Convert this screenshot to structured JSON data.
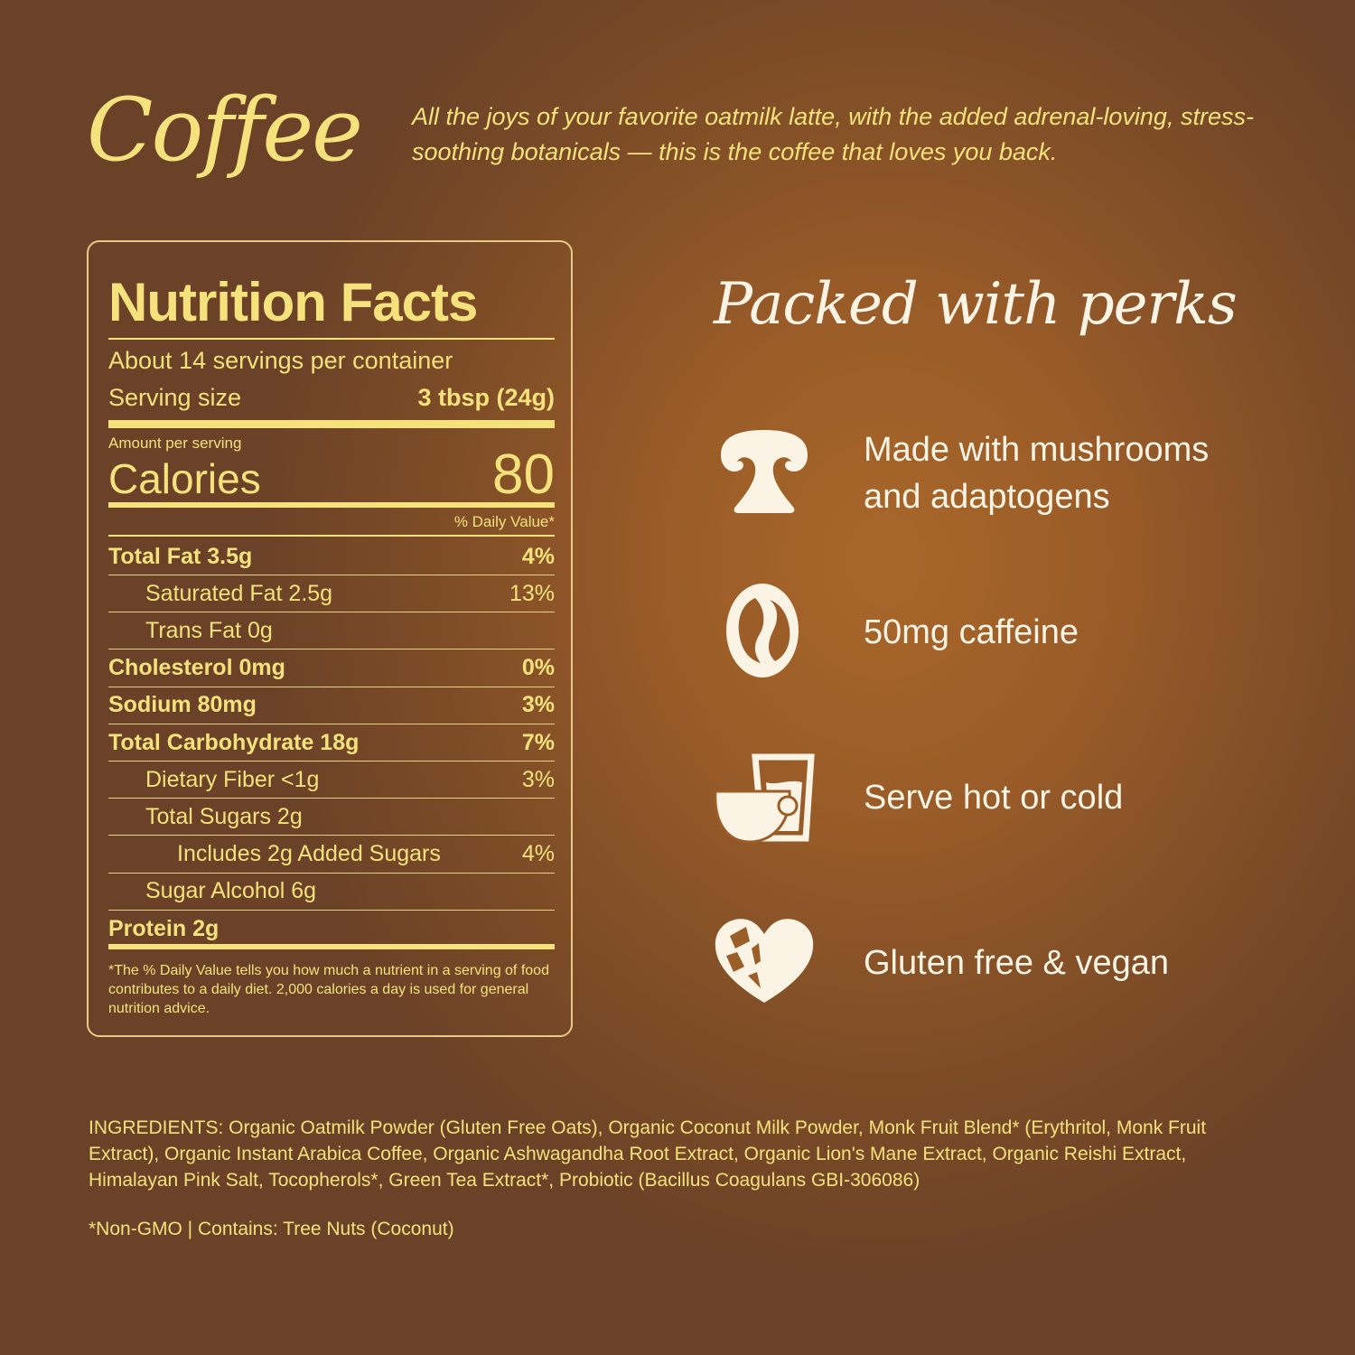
{
  "header": {
    "title": "Coffee",
    "tagline": "All the joys of your favorite oatmilk latte, with the added adrenal-loving, stress-soothing botanicals — this is the coffee that loves you back."
  },
  "nutrition": {
    "title": "Nutrition Facts",
    "servings": "About 14 servings per container",
    "serving_size_label": "Serving size",
    "serving_size_value": "3 tbsp (24g)",
    "amount_per_serving": "Amount per serving",
    "calories_label": "Calories",
    "calories_value": "80",
    "daily_value_header": "% Daily Value*",
    "rows": [
      {
        "label": "Total Fat 3.5g",
        "dv": "4%",
        "bold": true,
        "indent": 0
      },
      {
        "label": "Saturated Fat 2.5g",
        "dv": "13%",
        "bold": false,
        "indent": 1
      },
      {
        "label": "Trans Fat 0g",
        "dv": "",
        "bold": false,
        "indent": 1
      },
      {
        "label": "Cholesterol 0mg",
        "dv": "0%",
        "bold": true,
        "indent": 0
      },
      {
        "label": "Sodium 80mg",
        "dv": "3%",
        "bold": true,
        "indent": 0
      },
      {
        "label": "Total Carbohydrate 18g",
        "dv": "7%",
        "bold": true,
        "indent": 0
      },
      {
        "label": "Dietary Fiber <1g",
        "dv": "3%",
        "bold": false,
        "indent": 1
      },
      {
        "label": "Total Sugars 2g",
        "dv": "",
        "bold": false,
        "indent": 1
      },
      {
        "label": "Includes 2g Added Sugars",
        "dv": "4%",
        "bold": false,
        "indent": 2
      },
      {
        "label": "Sugar Alcohol 6g",
        "dv": "",
        "bold": false,
        "indent": 1
      },
      {
        "label": "Protein 2g",
        "dv": "",
        "bold": true,
        "indent": 0
      }
    ],
    "footnote": "*The % Daily Value tells you how much a nutrient in a serving of food contributes to a daily diet. 2,000 calories a day is used for general nutrition advice."
  },
  "perks": {
    "title": "Packed with perks",
    "items": [
      {
        "icon": "mushroom-icon",
        "label": "Made with mushrooms and adaptogens"
      },
      {
        "icon": "coffee-bean-icon",
        "label": "50mg caffeine"
      },
      {
        "icon": "cup-and-glass-icon",
        "label": "Serve hot or cold"
      },
      {
        "icon": "leaf-heart-icon",
        "label": "Gluten free & vegan"
      }
    ]
  },
  "ingredients": "INGREDIENTS: Organic Oatmilk Powder (Gluten Free Oats), Organic Coconut Milk Powder, Monk Fruit Blend* (Erythritol, Monk Fruit Extract), Organic Instant Arabica Coffee, Organic Ashwagandha Root Extract, Organic Lion's Mane Extract, Organic Reishi Extract, Himalayan Pink Salt, Tocopherols*, Green Tea Extract*, Probiotic (Bacillus Coagulans GBI-306086)",
  "allergen": "*Non-GMO | Contains: Tree Nuts (Coconut)",
  "colors": {
    "text": "#f6e27c",
    "icon": "#fbf3e4",
    "bg_dark": "#6b4127",
    "bg_light": "#a8672a"
  }
}
